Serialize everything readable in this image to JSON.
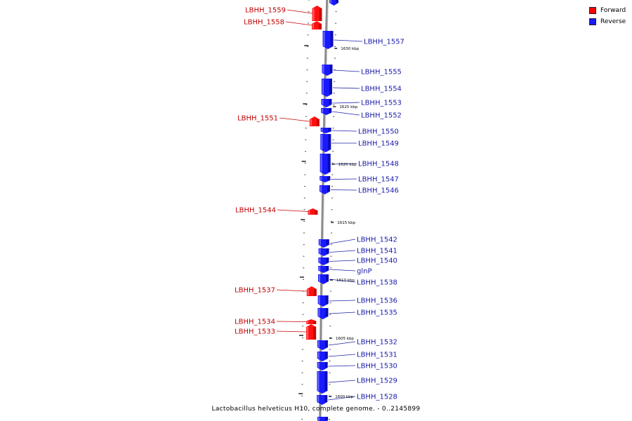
{
  "legend": {
    "forward_label": "Forward",
    "reverse_label": "Reverse",
    "forward_color": "#ff0000",
    "reverse_color": "#1a1aff"
  },
  "caption": "Lactobacillus helveticus H10, complete genome. - 0..2145899",
  "scale_labels": [
    "1630 kbp",
    "1625 kbp",
    "1620 kbp",
    "1615 kbp",
    "1610 kbp",
    "1605 kbp",
    "1600 kbp"
  ],
  "genes_forward": [
    "LBHH_1559",
    "LBHH_1558",
    "LBHH_1551",
    "LBHH_1544",
    "LBHH_1537",
    "LBHH_1534",
    "LBHH_1533"
  ],
  "genes_reverse": [
    "LBHH_1557",
    "LBHH_1555",
    "LBHH_1554",
    "LBHH_1553",
    "LBHH_1552",
    "LBHH_1550",
    "LBHH_1549",
    "LBHH_1548",
    "LBHH_1547",
    "LBHH_1546",
    "LBHH_1542",
    "LBHH_1541",
    "LBHH_1540",
    "glnP",
    "LBHH_1538",
    "LBHH_1536",
    "LBHH_1535",
    "LBHH_1532",
    "LBHH_1531",
    "LBHH_1530",
    "LBHH_1529",
    "LBHH_1528"
  ]
}
